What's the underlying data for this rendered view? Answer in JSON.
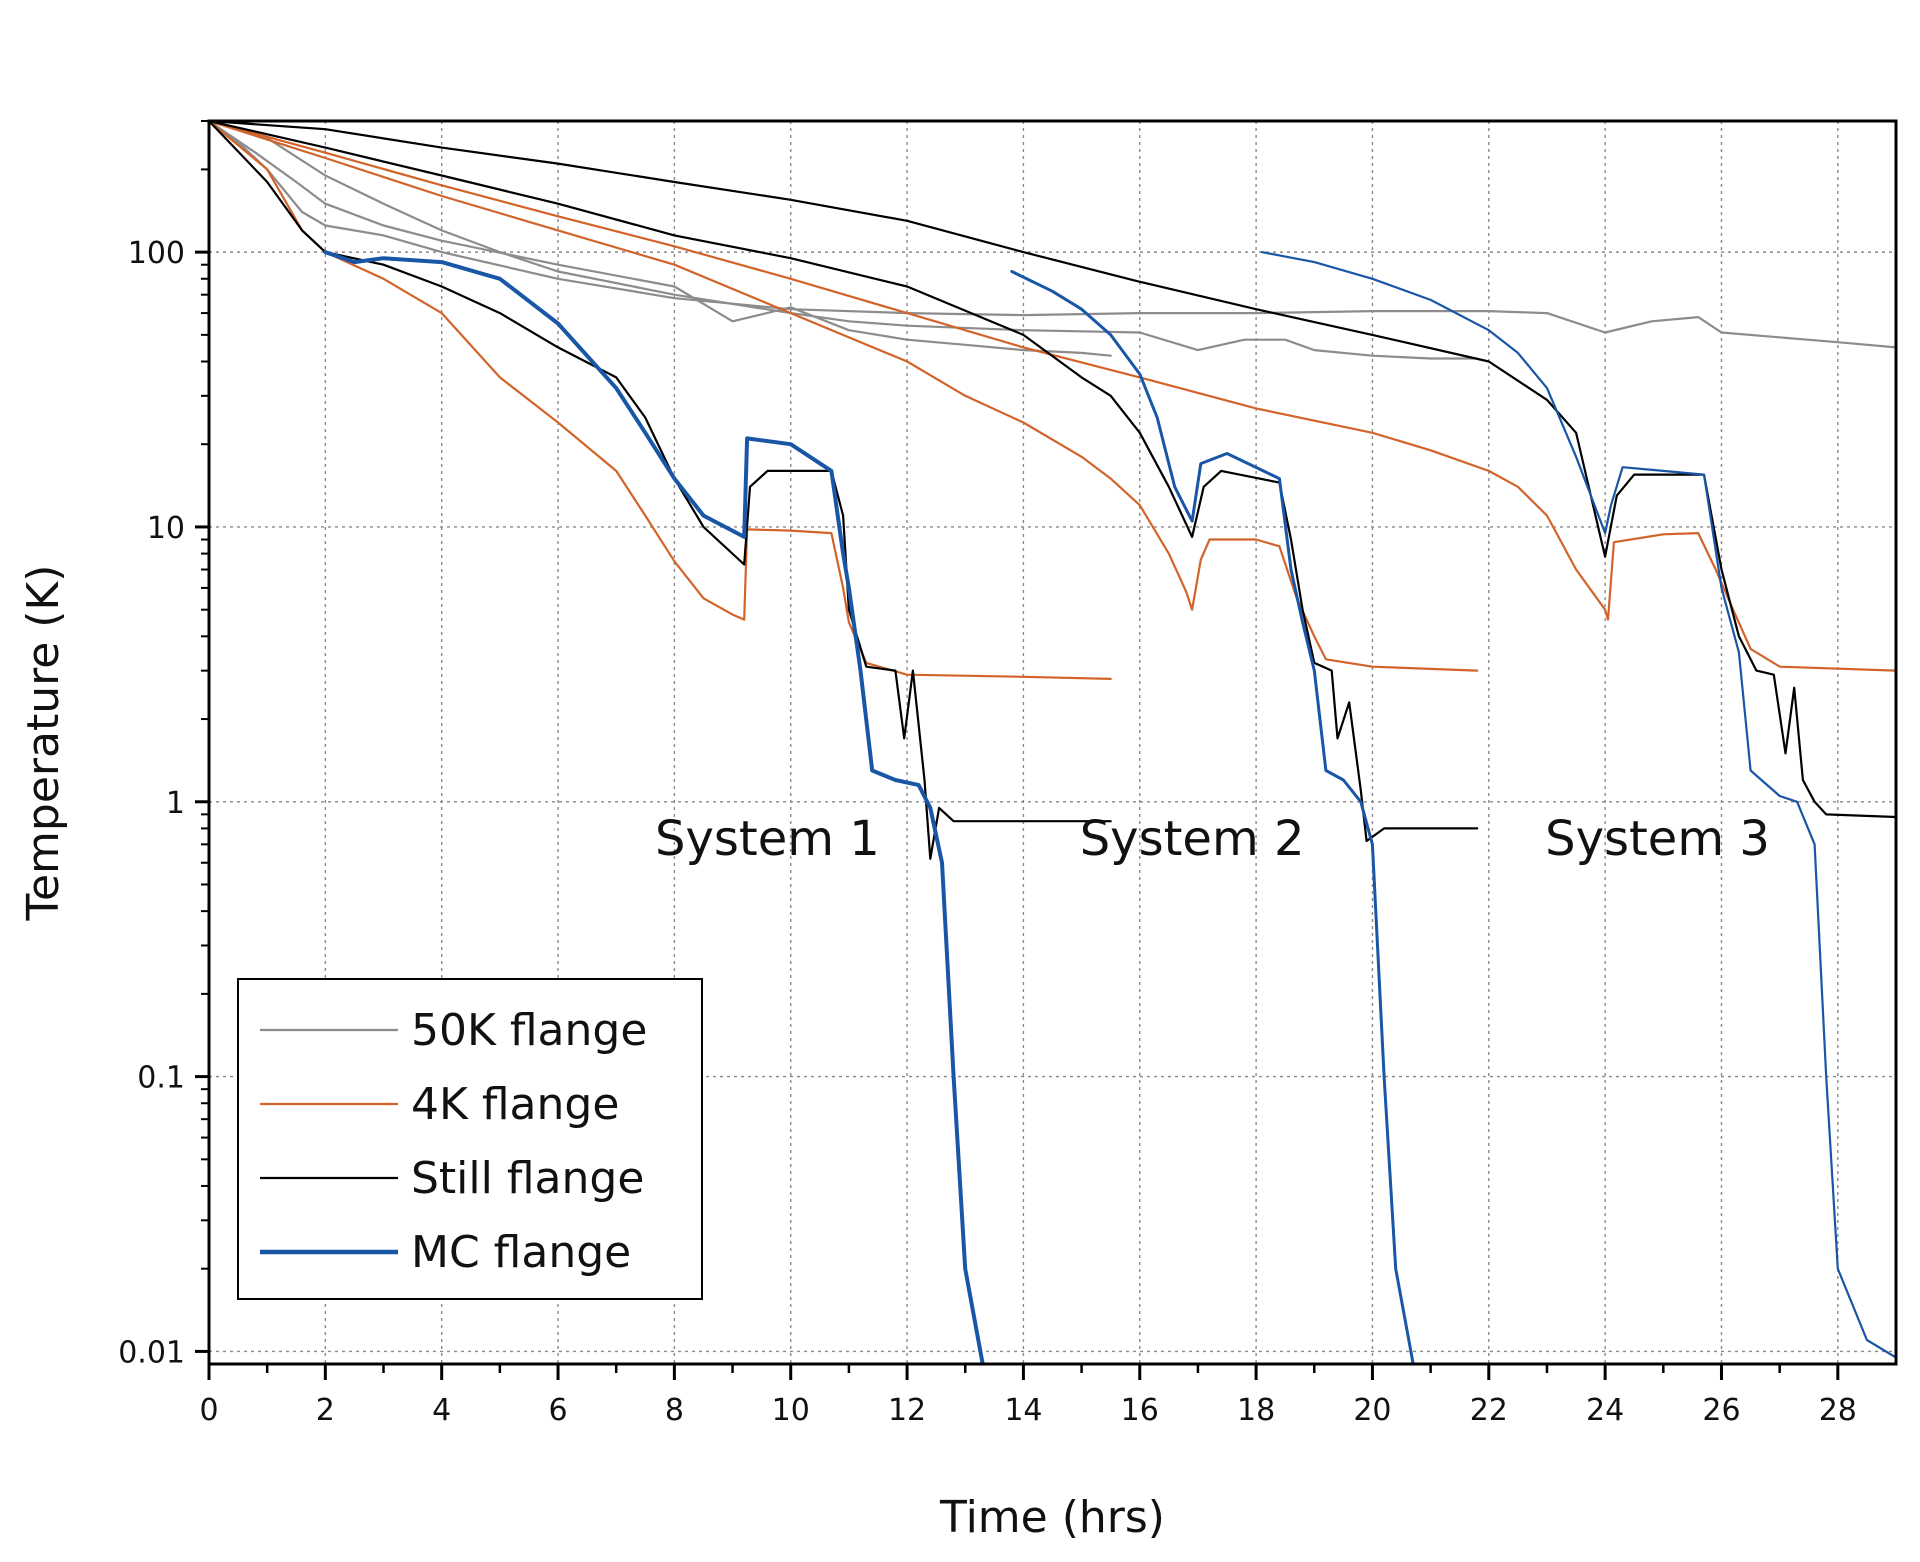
{
  "chart_data": {
    "type": "line",
    "xlabel": "Time (hrs)",
    "ylabel": "Temperature (K)",
    "xlim": [
      0,
      29
    ],
    "ylim": [
      0.009,
      300
    ],
    "y_scale": "log",
    "grid": true,
    "x_ticks": [
      0,
      2,
      4,
      6,
      8,
      10,
      12,
      14,
      16,
      18,
      20,
      22,
      24,
      26,
      28
    ],
    "y_ticks": [
      0.01,
      0.1,
      1,
      10,
      100
    ],
    "y_tick_labels": [
      "0.01",
      "0.1",
      "1",
      "10",
      "100"
    ],
    "legend_position": "bottom-left",
    "legend": [
      {
        "name": "50K flange",
        "color": "#8c8c8c"
      },
      {
        "name": "4K flange",
        "color": "#d2642a"
      },
      {
        "name": "Still flange",
        "color": "#000000"
      },
      {
        "name": "MC flange",
        "color": "#1a56a6"
      }
    ],
    "annotations": [
      {
        "text": "System 1",
        "x": 9.6,
        "y": 0.64
      },
      {
        "text": "System 2",
        "x": 16.9,
        "y": 0.64
      },
      {
        "text": "System 3",
        "x": 24.9,
        "y": 0.64
      }
    ],
    "series": [
      {
        "group": "50K flange",
        "color": "#8c8c8c",
        "width": 2.2,
        "points": [
          [
            0,
            300
          ],
          [
            0.6,
            240
          ],
          [
            1,
            200
          ],
          [
            1.6,
            140
          ],
          [
            2,
            125
          ],
          [
            3,
            115
          ],
          [
            4,
            100
          ],
          [
            6,
            80
          ],
          [
            8,
            68
          ],
          [
            10,
            62
          ],
          [
            12,
            60
          ],
          [
            14,
            59
          ],
          [
            16,
            60
          ],
          [
            18,
            60
          ],
          [
            20,
            61
          ],
          [
            22,
            61
          ],
          [
            23,
            60
          ],
          [
            24,
            51
          ],
          [
            24.8,
            56
          ],
          [
            25.6,
            58
          ],
          [
            26,
            51
          ],
          [
            28,
            47
          ],
          [
            29,
            45
          ]
        ]
      },
      {
        "group": "50K flange",
        "color": "#8c8c8c",
        "width": 2.2,
        "points": [
          [
            0,
            300
          ],
          [
            0.8,
            230
          ],
          [
            1.5,
            180
          ],
          [
            2,
            150
          ],
          [
            3,
            125
          ],
          [
            4,
            110
          ],
          [
            6,
            90
          ],
          [
            8,
            75
          ],
          [
            9,
            56
          ],
          [
            10,
            63
          ],
          [
            11,
            52
          ],
          [
            12,
            48
          ],
          [
            13,
            46
          ],
          [
            14,
            44
          ],
          [
            15,
            43
          ],
          [
            15.5,
            42
          ]
        ]
      },
      {
        "group": "50K flange",
        "color": "#8c8c8c",
        "width": 2.2,
        "points": [
          [
            0,
            300
          ],
          [
            1,
            260
          ],
          [
            2,
            190
          ],
          [
            3,
            150
          ],
          [
            4,
            120
          ],
          [
            5,
            100
          ],
          [
            6,
            85
          ],
          [
            8,
            70
          ],
          [
            10,
            60
          ],
          [
            11,
            56
          ],
          [
            12,
            54
          ],
          [
            14,
            52
          ],
          [
            16,
            51
          ],
          [
            17,
            44
          ],
          [
            17.8,
            48
          ],
          [
            18.5,
            48
          ],
          [
            19,
            44
          ],
          [
            20,
            42
          ],
          [
            21,
            41
          ],
          [
            21.8,
            41
          ]
        ]
      },
      {
        "group": "4K flange",
        "color": "#d2642a",
        "width": 2.2,
        "points": [
          [
            0,
            300
          ],
          [
            1,
            200
          ],
          [
            1.6,
            120
          ],
          [
            2,
            100
          ],
          [
            3,
            80
          ],
          [
            4,
            60
          ],
          [
            5,
            35
          ],
          [
            6,
            24
          ],
          [
            7,
            16
          ],
          [
            7.5,
            11
          ],
          [
            8,
            7.5
          ],
          [
            8.5,
            5.5
          ],
          [
            9,
            4.8
          ],
          [
            9.2,
            4.6
          ],
          [
            9.25,
            9.8
          ],
          [
            10,
            9.7
          ],
          [
            10.7,
            9.5
          ],
          [
            10.9,
            6
          ],
          [
            11,
            4.5
          ],
          [
            11.3,
            3.2
          ],
          [
            12,
            2.9
          ],
          [
            14,
            2.85
          ],
          [
            15.5,
            2.8
          ]
        ]
      },
      {
        "group": "4K flange",
        "color": "#d2642a",
        "width": 2.2,
        "points": [
          [
            0,
            300
          ],
          [
            2,
            220
          ],
          [
            4,
            160
          ],
          [
            6,
            120
          ],
          [
            8,
            90
          ],
          [
            10,
            60
          ],
          [
            12,
            40
          ],
          [
            13,
            30
          ],
          [
            14,
            24
          ],
          [
            15,
            18
          ],
          [
            15.5,
            15
          ],
          [
            16,
            12
          ],
          [
            16.5,
            8
          ],
          [
            16.8,
            5.8
          ],
          [
            16.9,
            5
          ],
          [
            17.05,
            7.6
          ],
          [
            17.2,
            9
          ],
          [
            18,
            9
          ],
          [
            18.4,
            8.5
          ],
          [
            18.7,
            5.5
          ],
          [
            19,
            4
          ],
          [
            19.2,
            3.3
          ],
          [
            20,
            3.1
          ],
          [
            21.8,
            3.0
          ]
        ]
      },
      {
        "group": "4K flange",
        "color": "#d2642a",
        "width": 2.2,
        "points": [
          [
            0,
            300
          ],
          [
            2,
            230
          ],
          [
            4,
            175
          ],
          [
            6,
            135
          ],
          [
            8,
            105
          ],
          [
            10,
            80
          ],
          [
            12,
            60
          ],
          [
            14,
            45
          ],
          [
            16,
            35
          ],
          [
            18,
            27
          ],
          [
            20,
            22
          ],
          [
            21,
            19
          ],
          [
            22,
            16
          ],
          [
            22.5,
            14
          ],
          [
            23,
            11
          ],
          [
            23.5,
            7
          ],
          [
            24,
            5
          ],
          [
            24.05,
            4.6
          ],
          [
            24.15,
            8.8
          ],
          [
            25,
            9.4
          ],
          [
            25.6,
            9.5
          ],
          [
            25.9,
            7
          ],
          [
            26.2,
            5
          ],
          [
            26.5,
            3.6
          ],
          [
            27,
            3.1
          ],
          [
            29,
            3.0
          ]
        ]
      },
      {
        "group": "Still flange",
        "color": "#000000",
        "width": 2.2,
        "points": [
          [
            0,
            300
          ],
          [
            1,
            180
          ],
          [
            1.6,
            120
          ],
          [
            2,
            100
          ],
          [
            3,
            90
          ],
          [
            4,
            75
          ],
          [
            5,
            60
          ],
          [
            6,
            45
          ],
          [
            7,
            35
          ],
          [
            7.5,
            25
          ],
          [
            8,
            15
          ],
          [
            8.5,
            10
          ],
          [
            9.2,
            7.3
          ],
          [
            9.3,
            14
          ],
          [
            9.6,
            16
          ],
          [
            10.7,
            16
          ],
          [
            10.9,
            11
          ],
          [
            11,
            5
          ],
          [
            11.3,
            3.1
          ],
          [
            11.8,
            3.0
          ],
          [
            11.95,
            1.7
          ],
          [
            12.1,
            3.0
          ],
          [
            12.3,
            1.2
          ],
          [
            12.4,
            0.62
          ],
          [
            12.55,
            0.95
          ],
          [
            12.8,
            0.85
          ],
          [
            15.5,
            0.85
          ]
        ]
      },
      {
        "group": "Still flange",
        "color": "#000000",
        "width": 2.2,
        "points": [
          [
            0,
            300
          ],
          [
            2,
            240
          ],
          [
            4,
            190
          ],
          [
            6,
            150
          ],
          [
            8,
            115
          ],
          [
            10,
            95
          ],
          [
            12,
            75
          ],
          [
            14,
            50
          ],
          [
            15,
            35
          ],
          [
            15.5,
            30
          ],
          [
            16,
            22
          ],
          [
            16.5,
            14
          ],
          [
            16.9,
            9.2
          ],
          [
            17.1,
            14
          ],
          [
            17.4,
            16
          ],
          [
            18.4,
            14.5
          ],
          [
            18.6,
            9
          ],
          [
            18.8,
            5
          ],
          [
            19,
            3.2
          ],
          [
            19.3,
            3.0
          ],
          [
            19.4,
            1.7
          ],
          [
            19.6,
            2.3
          ],
          [
            19.8,
            1.1
          ],
          [
            19.9,
            0.72
          ],
          [
            20.2,
            0.8
          ],
          [
            21.8,
            0.8
          ]
        ]
      },
      {
        "group": "Still flange",
        "color": "#000000",
        "width": 2.2,
        "points": [
          [
            0,
            300
          ],
          [
            2,
            280
          ],
          [
            4,
            240
          ],
          [
            6,
            210
          ],
          [
            8,
            180
          ],
          [
            10,
            155
          ],
          [
            12,
            130
          ],
          [
            14,
            100
          ],
          [
            16,
            78
          ],
          [
            18,
            62
          ],
          [
            20,
            50
          ],
          [
            22,
            40
          ],
          [
            23,
            29
          ],
          [
            23.5,
            22
          ],
          [
            24,
            7.8
          ],
          [
            24.2,
            13
          ],
          [
            24.5,
            15.5
          ],
          [
            25.7,
            15.5
          ],
          [
            26,
            7
          ],
          [
            26.3,
            4
          ],
          [
            26.6,
            3.0
          ],
          [
            26.9,
            2.9
          ],
          [
            27.1,
            1.5
          ],
          [
            27.25,
            2.6
          ],
          [
            27.4,
            1.2
          ],
          [
            27.6,
            1.0
          ],
          [
            27.8,
            0.9
          ],
          [
            29,
            0.88
          ]
        ]
      },
      {
        "group": "MC flange",
        "color": "#1a56a6",
        "width": 4.0,
        "points": [
          [
            2,
            100
          ],
          [
            2.5,
            92
          ],
          [
            3,
            95
          ],
          [
            4,
            92
          ],
          [
            5,
            80
          ],
          [
            6,
            55
          ],
          [
            7,
            32
          ],
          [
            7.5,
            22
          ],
          [
            8,
            15
          ],
          [
            8.5,
            11
          ],
          [
            9.2,
            9.2
          ],
          [
            9.25,
            21
          ],
          [
            10,
            20
          ],
          [
            10.7,
            16
          ],
          [
            10.9,
            8
          ],
          [
            11,
            6
          ],
          [
            11.2,
            3
          ],
          [
            11.4,
            1.3
          ],
          [
            11.8,
            1.2
          ],
          [
            12.2,
            1.15
          ],
          [
            12.4,
            0.95
          ],
          [
            12.6,
            0.6
          ],
          [
            12.8,
            0.1
          ],
          [
            13.0,
            0.02
          ],
          [
            13.3,
            0.009
          ]
        ]
      },
      {
        "group": "MC flange",
        "color": "#1a56a6",
        "width": 3.0,
        "points": [
          [
            13.8,
            85
          ],
          [
            14.5,
            72
          ],
          [
            15,
            62
          ],
          [
            15.5,
            50
          ],
          [
            16,
            36
          ],
          [
            16.3,
            25
          ],
          [
            16.6,
            14
          ],
          [
            16.9,
            10.5
          ],
          [
            17.05,
            17
          ],
          [
            17.5,
            18.5
          ],
          [
            18.4,
            15
          ],
          [
            18.6,
            7
          ],
          [
            18.8,
            4.5
          ],
          [
            19.0,
            3.0
          ],
          [
            19.2,
            1.3
          ],
          [
            19.5,
            1.2
          ],
          [
            19.8,
            1.0
          ],
          [
            20.0,
            0.7
          ],
          [
            20.2,
            0.1
          ],
          [
            20.4,
            0.02
          ],
          [
            20.7,
            0.009
          ]
        ]
      },
      {
        "group": "MC flange",
        "color": "#1a56a6",
        "width": 2.2,
        "points": [
          [
            18.1,
            100
          ],
          [
            19,
            92
          ],
          [
            20,
            80
          ],
          [
            21,
            67
          ],
          [
            22,
            52
          ],
          [
            22.5,
            43
          ],
          [
            23,
            32
          ],
          [
            23.5,
            18
          ],
          [
            24,
            9.5
          ],
          [
            24.1,
            12
          ],
          [
            24.3,
            16.5
          ],
          [
            25,
            16
          ],
          [
            25.7,
            15.5
          ],
          [
            26,
            6
          ],
          [
            26.3,
            3.5
          ],
          [
            26.5,
            1.3
          ],
          [
            27,
            1.05
          ],
          [
            27.3,
            1.0
          ],
          [
            27.6,
            0.7
          ],
          [
            27.8,
            0.1
          ],
          [
            28,
            0.02
          ],
          [
            28.5,
            0.011
          ],
          [
            29,
            0.0095
          ]
        ]
      }
    ]
  }
}
